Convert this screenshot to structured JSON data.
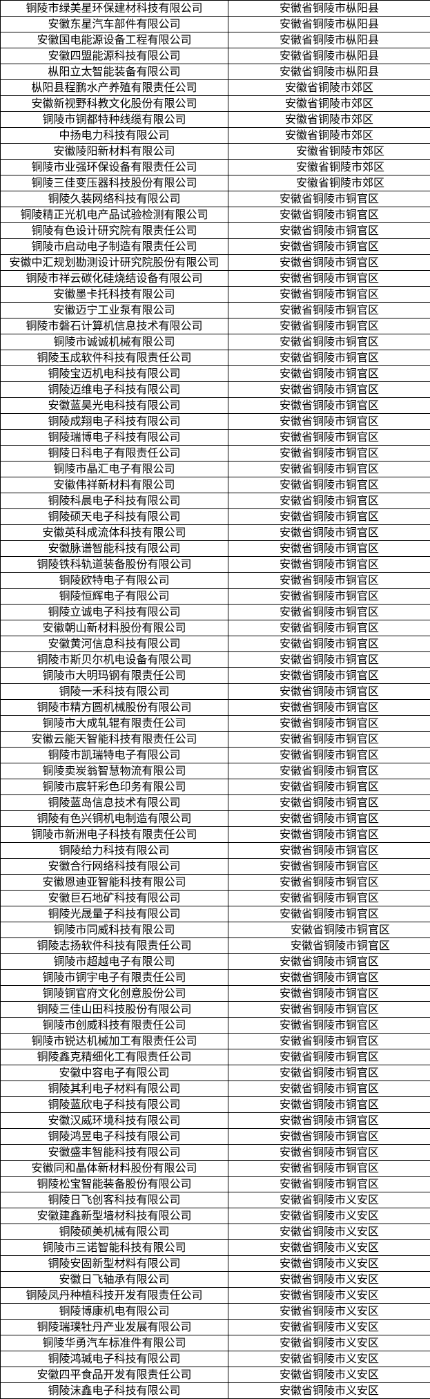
{
  "colors": {
    "border": "#000000",
    "text": "#000000",
    "background": "#ffffff"
  },
  "table": {
    "description": "two-column list of companies and their registered locations",
    "rows": [
      [
        "铜陵市绿美星环保建材科技有限公司",
        "安徽省铜陵市枞阳县"
      ],
      [
        "安徽东星汽车部件有限公司",
        "安徽省铜陵市枞阳县"
      ],
      [
        "安徽国电能源设备工程有限公司",
        "安徽省铜陵市枞阳县"
      ],
      [
        "安徽四盟能源科技有限公司",
        "安徽省铜陵市枞阳县"
      ],
      [
        "枞阳立太智能装备有限公司",
        "安徽省铜陵市枞阳县"
      ],
      [
        "枞阳县程鹏水产养殖有限责任公司",
        "安徽省铜陵市郊区"
      ],
      [
        "安徽新视野科教文化股份有限公司",
        "安徽省铜陵市郊区"
      ],
      [
        "铜陵市铜都特种线缆有限公司",
        "安徽省铜陵市郊区"
      ],
      [
        "中扬电力科技有限公司",
        "安徽省铜陵市郊区"
      ],
      [
        "安徽陵阳新材料有限公司",
        "　　安徽省铜陵市郊区"
      ],
      [
        "铜陵市业强环保设备有限责任公司",
        "　　安徽省铜陵市郊区"
      ],
      [
        "铜陵三佳变压器科技股份有限公司",
        "　　安徽省铜陵市郊区"
      ],
      [
        "铜陵久装网络科技有限公司",
        "安徽省铜陵市铜官区"
      ],
      [
        "铜陵精正光机电产品试验检测有限公司",
        "安徽省铜陵市铜官区"
      ],
      [
        "铜陵有色设计研究院有限责任公司",
        "安徽省铜陵市铜官区"
      ],
      [
        "铜陵市启动电子制造有限责任公司",
        "安徽省铜陵市铜官区"
      ],
      [
        "安徽中汇规划勘测设计研究院股份有限公司",
        "安徽省铜陵市铜官区"
      ],
      [
        "铜陵市祥云碳化硅烧结设备有限公司",
        "安徽省铜陵市铜官区"
      ],
      [
        "安徽墨卡托科技有限公司",
        "安徽省铜陵市铜官区"
      ],
      [
        "安徽迈宁工业泵有限公司",
        "安徽省铜陵市铜官区"
      ],
      [
        "铜陵市磐石计算机信息技术有限公司",
        "安徽省铜陵市铜官区"
      ],
      [
        "铜陵市诚诚机械有限公司",
        "安徽省铜陵市铜官区"
      ],
      [
        "铜陵玉成软件科技有限责任公司",
        "安徽省铜陵市铜官区"
      ],
      [
        "铜陵宝迈机电科技有限公司",
        "安徽省铜陵市铜官区"
      ],
      [
        "铜陵迈维电子科技有限公司",
        "安徽省铜陵市铜官区"
      ],
      [
        "安徽蓝昊光电科技有限公司",
        "安徽省铜陵市铜官区"
      ],
      [
        "铜陵成翔电子科技有限公司",
        "安徽省铜陵市铜官区"
      ],
      [
        "铜陵瑞博电子科技有限公司",
        "安徽省铜陵市铜官区"
      ],
      [
        "铜陵日科电子有限责任公司",
        "安徽省铜陵市铜官区"
      ],
      [
        "铜陵市晶汇电子有限公司",
        "安徽省铜陵市铜官区"
      ],
      [
        "安徽伟祥新材料有限公司",
        "安徽省铜陵市铜官区"
      ],
      [
        "铜陵科晨电子科技有限公司",
        "安徽省铜陵市铜官区"
      ],
      [
        "铜陵硕天电子科技有限公司",
        "安徽省铜陵市铜官区"
      ],
      [
        "安徽英科成流体科技有限公司",
        "安徽省铜陵市铜官区"
      ],
      [
        "安徽脉谱智能科技有限公司",
        "安徽省铜陵市铜官区"
      ],
      [
        "铜陵铁科轨道装备股份有限公司",
        "安徽省铜陵市铜官区"
      ],
      [
        "铜陵欧特电子有限公司",
        "安徽省铜陵市铜官区"
      ],
      [
        "铜陵恒辉电子有限公司",
        "安徽省铜陵市铜官区"
      ],
      [
        "铜陵立诚电子科技有限公司",
        "安徽省铜陵市铜官区"
      ],
      [
        "安徽朝山新材料股份有限公司",
        "安徽省铜陵市铜官区"
      ],
      [
        "安徽黄河信息科技有限公司",
        "安徽省铜陵市铜官区"
      ],
      [
        "铜陵市斯贝尔机电设备有限公司",
        "安徽省铜陵市铜官区"
      ],
      [
        "铜陵市大明玛钢有限责任公司",
        "安徽省铜陵市铜官区"
      ],
      [
        "铜陵一禾科技有限公司",
        "安徽省铜陵市铜官区"
      ],
      [
        "铜陵市精方圆机械股份有限公司",
        "安徽省铜陵市铜官区"
      ],
      [
        "铜陵市大成轧辊有限责任公司",
        "安徽省铜陵市铜官区"
      ],
      [
        "安徽云能天智能科技有限责任公司",
        "安徽省铜陵市铜官区"
      ],
      [
        "铜陵市凯瑞特电子有限公司",
        "安徽省铜陵市铜官区"
      ],
      [
        "铜陵卖炭翁智慧物流有限公司",
        "安徽省铜陵市铜官区"
      ],
      [
        "铜陵市宸轩彩色印务有限公司",
        "安徽省铜陵市铜官区"
      ],
      [
        "铜陵蓝岛信息技术有限公司",
        "安徽省铜陵市铜官区"
      ],
      [
        "铜陵有色兴铜机电制造有限公司",
        "安徽省铜陵市铜官区"
      ],
      [
        "铜陵市新洲电子科技有限责任公司",
        "安徽省铜陵市铜官区"
      ],
      [
        "铜陵给力科技有限公司",
        "安徽省铜陵市铜官区"
      ],
      [
        "安徽合行网络科技有限公司",
        "安徽省铜陵市铜官区"
      ],
      [
        "安徽恩迪亚智能科技有限公司",
        "安徽省铜陵市铜官区"
      ],
      [
        "安徽巨石地矿科技有限公司",
        "安徽省铜陵市铜官区"
      ],
      [
        "铜陵光晟量子科技有限公司",
        "安徽省铜陵市铜官区"
      ],
      [
        "铜陵市同威科技有限公司",
        "　　安徽省铜陵市铜官区"
      ],
      [
        "铜陵志扬软件科技有限责任公司",
        "　　安徽省铜陵市铜官区"
      ],
      [
        "铜陵市超越电子有限公司",
        "安徽省铜陵市铜官区"
      ],
      [
        "铜陵市铜宇电子有限责任公司",
        "安徽省铜陵市铜官区"
      ],
      [
        "铜陵铜官府文化创意股份公司",
        "安徽省铜陵市铜官区"
      ],
      [
        "铜陵三佳山田科技股份有限公司",
        "安徽省铜陵市铜官区"
      ],
      [
        "铜陵市创威科技有限责任公司",
        "安徽省铜陵市铜官区"
      ],
      [
        "铜陵市锐达机械加工有限责任公司",
        "安徽省铜陵市铜官区"
      ],
      [
        "铜陵鑫克精细化工有限责任公司",
        "安徽省铜陵市铜官区"
      ],
      [
        "安徽中容电子有限公司",
        "安徽省铜陵市铜官区"
      ],
      [
        "铜陵其利电子材料有限公司",
        "安徽省铜陵市铜官区"
      ],
      [
        "铜陵蓝欣电子科技有限公司",
        "安徽省铜陵市铜官区"
      ],
      [
        "安徽汉威环境科技有限公司",
        "安徽省铜陵市铜官区"
      ],
      [
        "铜陵鸿昱电子科技有限公司",
        "安徽省铜陵市铜官区"
      ],
      [
        "安徽盛丰智能科技有限公司",
        "安徽省铜陵市铜官区"
      ],
      [
        "安徽同和晶体新材料股份有限公司",
        "安徽省铜陵市铜官区"
      ],
      [
        "铜陵松宝智能装备股份有限公司",
        "安徽省铜陵市铜官区"
      ],
      [
        "铜陵日飞创客科技有限公司",
        "安徽省铜陵市义安区"
      ],
      [
        "安徽建鑫新型墙材科技有限公司",
        "安徽省铜陵市义安区"
      ],
      [
        "铜陵硕美机械有限公司",
        "安徽省铜陵市义安区"
      ],
      [
        "铜陵市三诺智能科技有限公司",
        "安徽省铜陵市义安区"
      ],
      [
        "铜陵安固新型材料有限公司",
        "安徽省铜陵市义安区"
      ],
      [
        "安徽日飞轴承有限公司",
        "安徽省铜陵市义安区"
      ],
      [
        "铜陵凤丹种植科技开发有限责任公司",
        "安徽省铜陵市义安区"
      ],
      [
        "铜陵博康机电有限公司",
        "安徽省铜陵市义安区"
      ],
      [
        "铜陵瑞璞牡丹产业发展有限公司",
        "安徽省铜陵市义安区"
      ],
      [
        "铜陵华勇汽车标准件有限公司",
        "安徽省铜陵市义安区"
      ],
      [
        "铜陵鸿瑊电子科技有限公司",
        "安徽省铜陵市义安区"
      ],
      [
        "安徽四平食品开发有限责任公司",
        "安徽省铜陵市义安区"
      ],
      [
        "铜陵沫鑫电子科技有限公司",
        "安徽省铜陵市义安区"
      ]
    ]
  }
}
